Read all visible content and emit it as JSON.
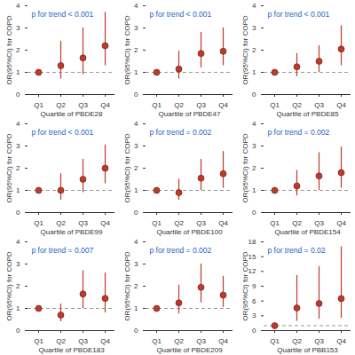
{
  "chart_data": [
    {
      "type": "scatter",
      "x_label": "Quartile of PBDE28",
      "y_label": "OR(95%CI) for COPD",
      "annotation": "p for trend < 0.001",
      "categories": [
        "Q1",
        "Q2",
        "Q3",
        "Q4"
      ],
      "values": [
        1,
        1.3,
        1.65,
        2.2
      ],
      "lower": [
        1,
        0.7,
        0.9,
        1.3
      ],
      "upper": [
        1,
        2.4,
        3.0,
        3.7
      ],
      "reference": 1,
      "ylim": [
        0,
        4
      ],
      "yticks": [
        0,
        1,
        2,
        3,
        4
      ],
      "color": "#c0392b"
    },
    {
      "type": "scatter",
      "x_label": "Quartile of PBDE47",
      "y_label": "OR(95%CI) for COPD",
      "annotation": "p for trend < 0.001",
      "categories": [
        "Q1",
        "Q2",
        "Q3",
        "Q4"
      ],
      "values": [
        1,
        1.15,
        1.85,
        1.95
      ],
      "lower": [
        1,
        0.7,
        1.2,
        1.3
      ],
      "upper": [
        1,
        1.95,
        2.8,
        3.0
      ],
      "reference": 1,
      "ylim": [
        0,
        4
      ],
      "yticks": [
        0,
        1,
        2,
        3,
        4
      ],
      "color": "#c0392b"
    },
    {
      "type": "scatter",
      "x_label": "Quartile of PBDE85",
      "y_label": "OR(95%CI) for COPD",
      "annotation": "p for trend < 0.001",
      "categories": [
        "Q1",
        "Q2",
        "Q3",
        "Q4"
      ],
      "values": [
        1,
        1.25,
        1.5,
        2.05
      ],
      "lower": [
        1,
        0.8,
        1.0,
        1.3
      ],
      "upper": [
        1,
        1.85,
        2.2,
        3.1
      ],
      "reference": 1,
      "ylim": [
        0,
        4
      ],
      "yticks": [
        0,
        1,
        2,
        3,
        4
      ],
      "color": "#c0392b"
    },
    {
      "type": "scatter",
      "x_label": "Quartile of PBDE99",
      "y_label": "OR(95%CI) for COPD",
      "annotation": "p for trend < 0.001",
      "categories": [
        "Q1",
        "Q2",
        "Q3",
        "Q4"
      ],
      "values": [
        1,
        1.0,
        1.5,
        2.0
      ],
      "lower": [
        1,
        0.55,
        0.9,
        1.3
      ],
      "upper": [
        1,
        1.75,
        2.4,
        3.05
      ],
      "reference": 1,
      "ylim": [
        0,
        4
      ],
      "yticks": [
        0,
        1,
        2,
        3,
        4
      ],
      "color": "#c0392b"
    },
    {
      "type": "scatter",
      "x_label": "Quartile of PBDE100",
      "y_label": "OR(95%CI) for COPD",
      "annotation": "p for trend = 0.002",
      "categories": [
        "Q1",
        "Q2",
        "Q3",
        "Q4"
      ],
      "values": [
        1,
        0.9,
        1.55,
        1.75
      ],
      "lower": [
        1,
        0.55,
        1.0,
        1.1
      ],
      "upper": [
        1,
        1.5,
        2.4,
        2.75
      ],
      "reference": 1,
      "ylim": [
        0,
        4
      ],
      "yticks": [
        0,
        1,
        2,
        3,
        4
      ],
      "color": "#c0392b"
    },
    {
      "type": "scatter",
      "x_label": "Quartile of PBDE154",
      "y_label": "OR(95%CI) for COPD",
      "annotation": "p for trend = 0.002",
      "categories": [
        "Q1",
        "Q2",
        "Q3",
        "Q4"
      ],
      "values": [
        1,
        1.2,
        1.65,
        1.8
      ],
      "lower": [
        1,
        0.75,
        1.0,
        1.1
      ],
      "upper": [
        1,
        1.9,
        2.7,
        2.95
      ],
      "reference": 1,
      "ylim": [
        0,
        4
      ],
      "yticks": [
        0,
        1,
        2,
        3,
        4
      ],
      "color": "#c0392b"
    },
    {
      "type": "scatter",
      "x_label": "Quartile of PBDE183",
      "y_label": "OR(95%CI) for COPD",
      "annotation": "p for trend = 0.007",
      "categories": [
        "Q1",
        "Q2",
        "Q3",
        "Q4"
      ],
      "values": [
        1,
        0.7,
        1.65,
        1.45
      ],
      "lower": [
        1,
        0.4,
        1.0,
        0.8
      ],
      "upper": [
        1,
        1.2,
        2.7,
        2.6
      ],
      "reference": 1,
      "ylim": [
        0,
        4
      ],
      "yticks": [
        0,
        1,
        2,
        3,
        4
      ],
      "color": "#c0392b"
    },
    {
      "type": "scatter",
      "x_label": "Quartile of PBDE209",
      "y_label": "OR(95%CI) for COPD",
      "annotation": "p for trend = 0.002",
      "categories": [
        "Q1",
        "Q2",
        "Q3",
        "Q4"
      ],
      "values": [
        1,
        1.25,
        1.95,
        1.6
      ],
      "lower": [
        1,
        0.75,
        1.25,
        1.05
      ],
      "upper": [
        1,
        2.05,
        3.0,
        2.45
      ],
      "reference": 1,
      "ylim": [
        0,
        4
      ],
      "yticks": [
        0,
        1,
        2,
        3,
        4
      ],
      "color": "#c0392b"
    },
    {
      "type": "scatter",
      "x_label": "Quartile of PBB153",
      "y_label": "OR(95%CI) for COPD",
      "annotation": "p for trend = 0.02",
      "categories": [
        "Q1",
        "Q2",
        "Q3",
        "Q4"
      ],
      "values": [
        1,
        4.6,
        5.5,
        6.5
      ],
      "lower": [
        1,
        1.9,
        2.3,
        2.5
      ],
      "upper": [
        1,
        11.2,
        13,
        17
      ],
      "reference": 1,
      "ylim": [
        0,
        18
      ],
      "yticks": [
        0,
        3,
        6,
        9,
        12,
        15,
        18
      ],
      "color": "#c0392b"
    }
  ]
}
